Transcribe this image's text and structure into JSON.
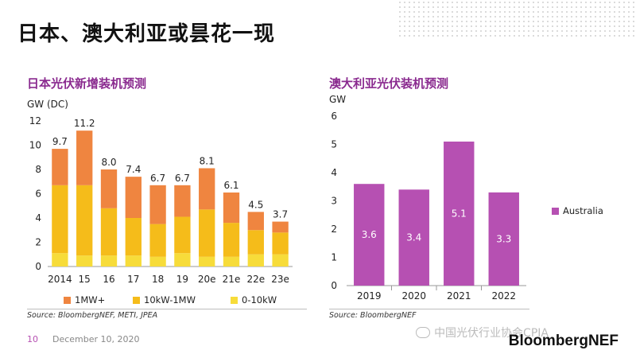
{
  "page": {
    "title": "日本、澳大利亚或昙花一现",
    "page_number": "10",
    "date": "December 10, 2020",
    "brand": "BloombergNEF",
    "watermark": "中国光伏行业协会CPIA"
  },
  "chart_data": [
    {
      "type": "bar",
      "stacked": true,
      "title": "日本光伏新增装机预测",
      "ylabel": "GW (DC)",
      "ylim": [
        0,
        12
      ],
      "yticks": [
        "0",
        "2",
        "4",
        "6",
        "8",
        "10",
        "12"
      ],
      "categories": [
        "2014",
        "15",
        "16",
        "17",
        "18",
        "19",
        "20e",
        "21e",
        "22e",
        "23e"
      ],
      "totals": [
        "9.7",
        "11.2",
        "8.0",
        "7.4",
        "6.7",
        "6.7",
        "8.1",
        "6.1",
        "4.5",
        "3.7"
      ],
      "series": [
        {
          "name": "0-10kW",
          "color": "#f7dc3a",
          "values": [
            1.1,
            0.9,
            0.9,
            0.9,
            0.8,
            1.1,
            0.8,
            0.8,
            1.0,
            1.0
          ]
        },
        {
          "name": "10kW-1MW",
          "color": "#f5bc1a",
          "values": [
            5.6,
            5.8,
            3.9,
            3.1,
            2.7,
            3.0,
            3.9,
            2.8,
            2.0,
            1.8
          ]
        },
        {
          "name": "1MW+",
          "color": "#ef8540",
          "values": [
            3.0,
            4.5,
            3.2,
            3.4,
            3.2,
            2.6,
            3.4,
            2.5,
            1.5,
            0.9
          ]
        }
      ],
      "legend": [
        "1MW+",
        "10kW-1MW",
        "0-10kW"
      ],
      "source": "Source: BloombergNEF, METI, JPEA"
    },
    {
      "type": "bar",
      "title": "澳大利亚光伏装机预测",
      "ylabel": "GW",
      "ylim": [
        0,
        6
      ],
      "yticks": [
        "0",
        "1",
        "2",
        "3",
        "4",
        "5",
        "6"
      ],
      "categories": [
        "2019",
        "2020",
        "2021",
        "2022"
      ],
      "series": [
        {
          "name": "Australia",
          "color": "#b650b2",
          "values": [
            3.6,
            3.4,
            5.1,
            3.3
          ]
        }
      ],
      "labels": [
        "3.6",
        "3.4",
        "5.1",
        "3.3"
      ],
      "legend": [
        "Australia"
      ],
      "source": "Source: BloombergNEF"
    }
  ]
}
